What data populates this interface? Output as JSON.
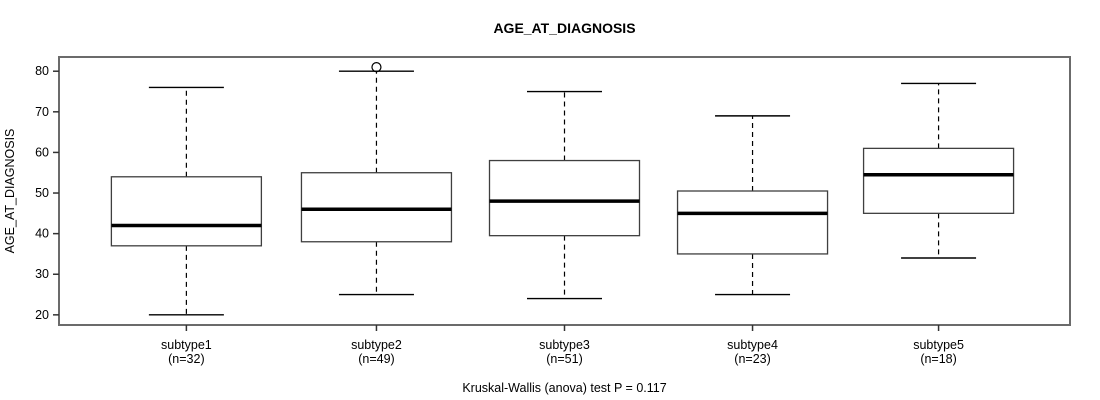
{
  "chart_data": {
    "type": "boxplot",
    "title": "AGE_AT_DIAGNOSIS",
    "ylabel": "AGE_AT_DIAGNOSIS",
    "xlabel": "",
    "annotation": "Kruskal-Wallis (anova) test P = 0.117",
    "ylim": [
      17.5,
      83.5
    ],
    "yticks": [
      20,
      30,
      40,
      50,
      60,
      70,
      80
    ],
    "grid": false,
    "legend": "none",
    "groups": [
      {
        "name": "subtype1",
        "n_label": "(n=32)",
        "n": 32,
        "whisker_low": 20,
        "q1": 37,
        "median": 42,
        "q3": 54,
        "whisker_high": 76,
        "outliers": []
      },
      {
        "name": "subtype2",
        "n_label": "(n=49)",
        "n": 49,
        "whisker_low": 25,
        "q1": 38,
        "median": 46,
        "q3": 55,
        "whisker_high": 80,
        "outliers": [
          81
        ]
      },
      {
        "name": "subtype3",
        "n_label": "(n=51)",
        "n": 51,
        "whisker_low": 24,
        "q1": 39.5,
        "median": 48,
        "q3": 58,
        "whisker_high": 75,
        "outliers": []
      },
      {
        "name": "subtype4",
        "n_label": "(n=23)",
        "n": 23,
        "whisker_low": 25,
        "q1": 35,
        "median": 45,
        "q3": 50.5,
        "whisker_high": 69,
        "outliers": []
      },
      {
        "name": "subtype5",
        "n_label": "(n=18)",
        "n": 18,
        "whisker_low": 34,
        "q1": 45,
        "median": 54.5,
        "q3": 61,
        "whisker_high": 77,
        "outliers": []
      }
    ],
    "colors": {
      "box_fill": "#ffffff",
      "box_border": "#3f3f3f",
      "median_line": "#000000",
      "whisker_line": "#000000",
      "frame": "#6b6b6b",
      "tick": "#333333",
      "text": "#000000"
    }
  }
}
